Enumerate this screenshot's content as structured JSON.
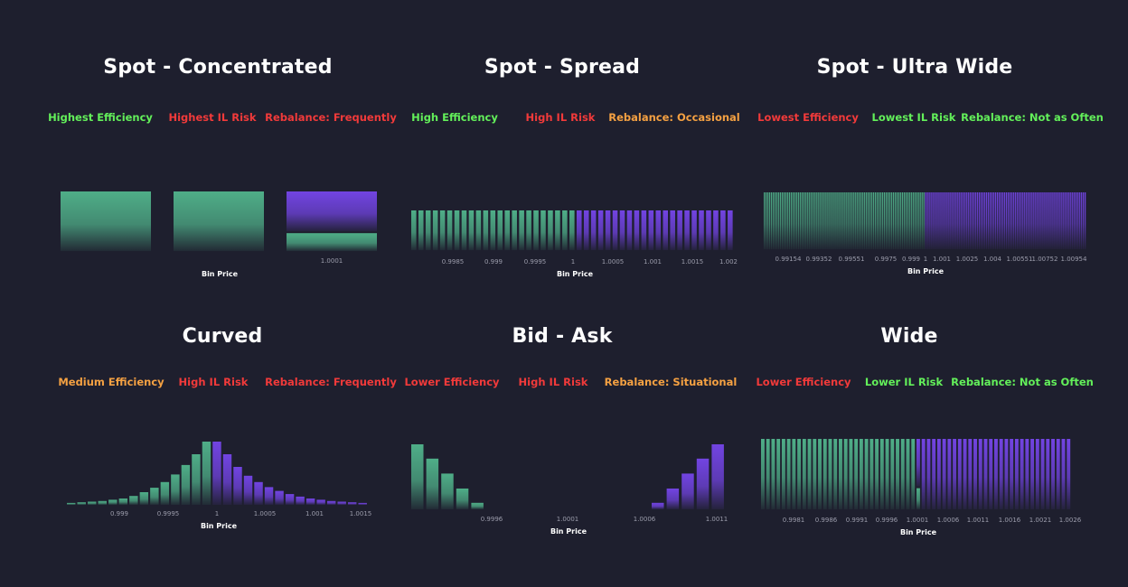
{
  "colors": {
    "background": "#1e1f2e",
    "green": "#63f05a",
    "red": "#f23a3a",
    "orange": "#f5a142",
    "bar_green": "#4fae88",
    "bar_purple": "#7244e2"
  },
  "panels": [
    {
      "title": "Spot - Concentrated",
      "tags": [
        {
          "text": "Highest Efficiency",
          "color": "#63f05a"
        },
        {
          "text": "Highest IL Risk",
          "color": "#f23a3a"
        },
        {
          "text": "Rebalance: Frequently",
          "color": "#f23a3a"
        }
      ]
    },
    {
      "title": "Spot - Spread",
      "tags": [
        {
          "text": "High Efficiency",
          "color": "#63f05a"
        },
        {
          "text": "High IL Risk",
          "color": "#f23a3a"
        },
        {
          "text": "Rebalance: Occasional",
          "color": "#f5a142"
        }
      ]
    },
    {
      "title": "Spot - Ultra Wide",
      "tags": [
        {
          "text": "Lowest Efficiency",
          "color": "#f23a3a"
        },
        {
          "text": "Lowest IL Risk",
          "color": "#63f05a"
        },
        {
          "text": "Rebalance: Not as Often",
          "color": "#63f05a"
        }
      ]
    },
    {
      "title": "Curved",
      "tags": [
        {
          "text": "Medium Efficiency",
          "color": "#f5a142"
        },
        {
          "text": "High IL Risk",
          "color": "#f23a3a"
        },
        {
          "text": "Rebalance: Frequently",
          "color": "#f23a3a"
        }
      ]
    },
    {
      "title": "Bid - Ask",
      "tags": [
        {
          "text": "Lower Efficiency",
          "color": "#f23a3a"
        },
        {
          "text": "High IL Risk",
          "color": "#f23a3a"
        },
        {
          "text": "Rebalance: Situational",
          "color": "#f5a142"
        }
      ]
    },
    {
      "title": "Wide",
      "tags": [
        {
          "text": "Lower Efficiency",
          "color": "#f23a3a"
        },
        {
          "text": "Lower IL Risk",
          "color": "#63f05a"
        },
        {
          "text": "Rebalance: Not as Often",
          "color": "#63f05a"
        }
      ]
    }
  ],
  "chart_data": [
    {
      "type": "bar",
      "name": "Spot - Concentrated",
      "xlabel": "Bin Price",
      "ticks": [
        "1.0001"
      ],
      "bars": [
        {
          "green": 1,
          "purple": 0
        },
        {
          "green": 1,
          "purple": 0
        },
        {
          "green": 0.3,
          "purple": 0.7
        }
      ]
    },
    {
      "type": "bar",
      "name": "Spot - Spread",
      "xlabel": "Bin Price",
      "ticks": [
        "0.9985",
        "0.999",
        "0.9995",
        "1",
        "1.0005",
        "1.001",
        "1.0015",
        "1.002"
      ],
      "green_bins": 23,
      "purple_bins": 22,
      "value": 1
    },
    {
      "type": "bar",
      "name": "Spot - Ultra Wide",
      "xlabel": "Bin Price",
      "ticks": [
        "0.99154",
        "0.99352",
        "0.99551",
        "0.9975",
        "0.999",
        "1",
        "1.001",
        "1.0025",
        "1.004",
        "1.00551",
        "1.00752",
        "1.00954"
      ],
      "green_bins": 90,
      "purple_bins": 90,
      "value": 1
    },
    {
      "type": "bar",
      "name": "Curved",
      "xlabel": "Bin Price",
      "ticks": [
        "0.999",
        "0.9995",
        "1",
        "1.0005",
        "1.001",
        "1.0015"
      ],
      "green": [
        0.03,
        0.04,
        0.05,
        0.06,
        0.08,
        0.1,
        0.14,
        0.2,
        0.27,
        0.36,
        0.48,
        0.63,
        0.8,
        1.0
      ],
      "purple": [
        1.0,
        0.8,
        0.6,
        0.46,
        0.36,
        0.28,
        0.22,
        0.17,
        0.13,
        0.1,
        0.08,
        0.06,
        0.05,
        0.04,
        0.03
      ]
    },
    {
      "type": "bar",
      "name": "Bid - Ask",
      "xlabel": "Bin Price",
      "ticks": [
        "0.9996",
        "1.0001",
        "1.0006",
        "1.0011"
      ],
      "green": [
        1.0,
        0.78,
        0.55,
        0.32,
        0.1
      ],
      "purple": [
        0.1,
        0.32,
        0.55,
        0.78,
        1.0
      ]
    },
    {
      "type": "bar",
      "name": "Wide",
      "xlabel": "Bin Price",
      "ticks": [
        "0.9981",
        "0.9986",
        "0.9991",
        "0.9996",
        "1.0001",
        "1.0006",
        "1.0011",
        "1.0016",
        "1.0021",
        "1.0026"
      ],
      "green_bins": 30,
      "purple_bins": 30,
      "value": 1,
      "split_bin": {
        "green": 0.3,
        "purple": 0.7
      }
    }
  ]
}
